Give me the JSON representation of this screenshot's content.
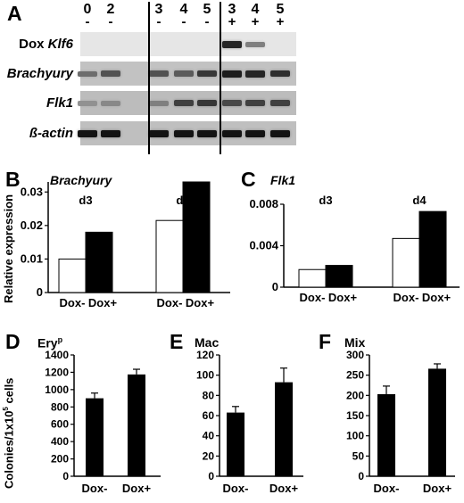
{
  "panel_a": {
    "label": "A",
    "lanes": [
      {
        "day": "0",
        "dox": "-"
      },
      {
        "day": "2",
        "dox": "-"
      },
      {
        "day": "3",
        "dox": "-"
      },
      {
        "day": "4",
        "dox": "-"
      },
      {
        "day": "5",
        "dox": "-"
      },
      {
        "day": "3",
        "dox": "+"
      },
      {
        "day": "4",
        "dox": "+"
      },
      {
        "day": "5",
        "dox": "+"
      }
    ],
    "rows": [
      {
        "prefix": "Dox ",
        "gene": "Klf6",
        "bg": "#e6e6e6",
        "intensity": [
          0,
          0,
          0,
          0,
          0,
          0.85,
          0.35,
          0
        ]
      },
      {
        "prefix": "",
        "gene": "Brachyury",
        "bg": "#c2c2c2",
        "intensity": [
          0.45,
          0.6,
          0.6,
          0.55,
          0.75,
          0.9,
          0.85,
          0.8
        ]
      },
      {
        "prefix": "",
        "gene": "Flk1",
        "bg": "#bcbcbc",
        "intensity": [
          0.25,
          0.3,
          0.35,
          0.7,
          0.75,
          0.65,
          0.7,
          0.7
        ]
      },
      {
        "prefix": "",
        "gene": "ß-actin",
        "bg": "#bfbfbf",
        "intensity": [
          0.95,
          0.95,
          0.95,
          0.95,
          0.95,
          0.95,
          0.95,
          0.95
        ]
      }
    ]
  },
  "panel_b": {
    "label": "B"
  },
  "panel_c": {
    "label": "C"
  },
  "panel_d": {
    "label": "D"
  },
  "panel_e": {
    "label": "E"
  },
  "panel_f": {
    "label": "F"
  },
  "chart_data": [
    {
      "type": "bar",
      "title": "Brachyury",
      "ylabel": "Relative expression",
      "groups": [
        "d3",
        "d4"
      ],
      "categories": [
        "Dox-",
        "Dox+"
      ],
      "series": [
        {
          "name": "Dox-",
          "values": [
            0.01,
            0.0215
          ],
          "fill": "#ffffff"
        },
        {
          "name": "Dox+",
          "values": [
            0.018,
            0.033
          ],
          "fill": "#000000"
        }
      ],
      "ylim": [
        0,
        0.033
      ],
      "yticks": [
        0,
        0.01,
        0.02,
        0.03
      ],
      "ytick_labels": [
        "0",
        "0.01",
        "0.02",
        "0.03"
      ]
    },
    {
      "type": "bar",
      "title": "Flk1",
      "groups": [
        "d3",
        "d4"
      ],
      "categories": [
        "Dox-",
        "Dox+"
      ],
      "series": [
        {
          "name": "Dox-",
          "values": [
            0.0017,
            0.0047
          ],
          "fill": "#ffffff"
        },
        {
          "name": "Dox+",
          "values": [
            0.0021,
            0.0073
          ],
          "fill": "#000000"
        }
      ],
      "ylim": [
        0,
        0.008
      ],
      "yticks": [
        0,
        0.004,
        0.008
      ],
      "ytick_labels": [
        "0",
        "0.004",
        "0.008"
      ]
    },
    {
      "type": "bar",
      "title": "Ery",
      "title_sup": "p",
      "ylabel": "Colonies/1x10",
      "ylabel_sup": "5",
      "ylabel_suffix": " cells",
      "categories": [
        "Dox-",
        "Dox+"
      ],
      "values": [
        900,
        1175
      ],
      "errors": [
        60,
        60
      ],
      "ylim": [
        0,
        1400
      ],
      "yticks": [
        0,
        200,
        400,
        600,
        800,
        1000,
        1200,
        1400
      ],
      "ytick_labels": [
        "0",
        "200",
        "400",
        "600",
        "800",
        "1000",
        "1200",
        "1400"
      ]
    },
    {
      "type": "bar",
      "title": "Mac",
      "categories": [
        "Dox-",
        "Dox+"
      ],
      "values": [
        63,
        93
      ],
      "errors": [
        6,
        14
      ],
      "ylim": [
        0,
        120
      ],
      "yticks": [
        0,
        20,
        40,
        60,
        80,
        100,
        120
      ],
      "ytick_labels": [
        "0",
        "20",
        "40",
        "60",
        "80",
        "100",
        "120"
      ]
    },
    {
      "type": "bar",
      "title": "Mix",
      "categories": [
        "Dox-",
        "Dox+"
      ],
      "values": [
        203,
        266
      ],
      "errors": [
        20,
        12
      ],
      "ylim": [
        0,
        300
      ],
      "yticks": [
        0,
        50,
        100,
        150,
        200,
        250,
        300
      ],
      "ytick_labels": [
        "0",
        "50",
        "100",
        "150",
        "200",
        "250",
        "300"
      ]
    }
  ]
}
